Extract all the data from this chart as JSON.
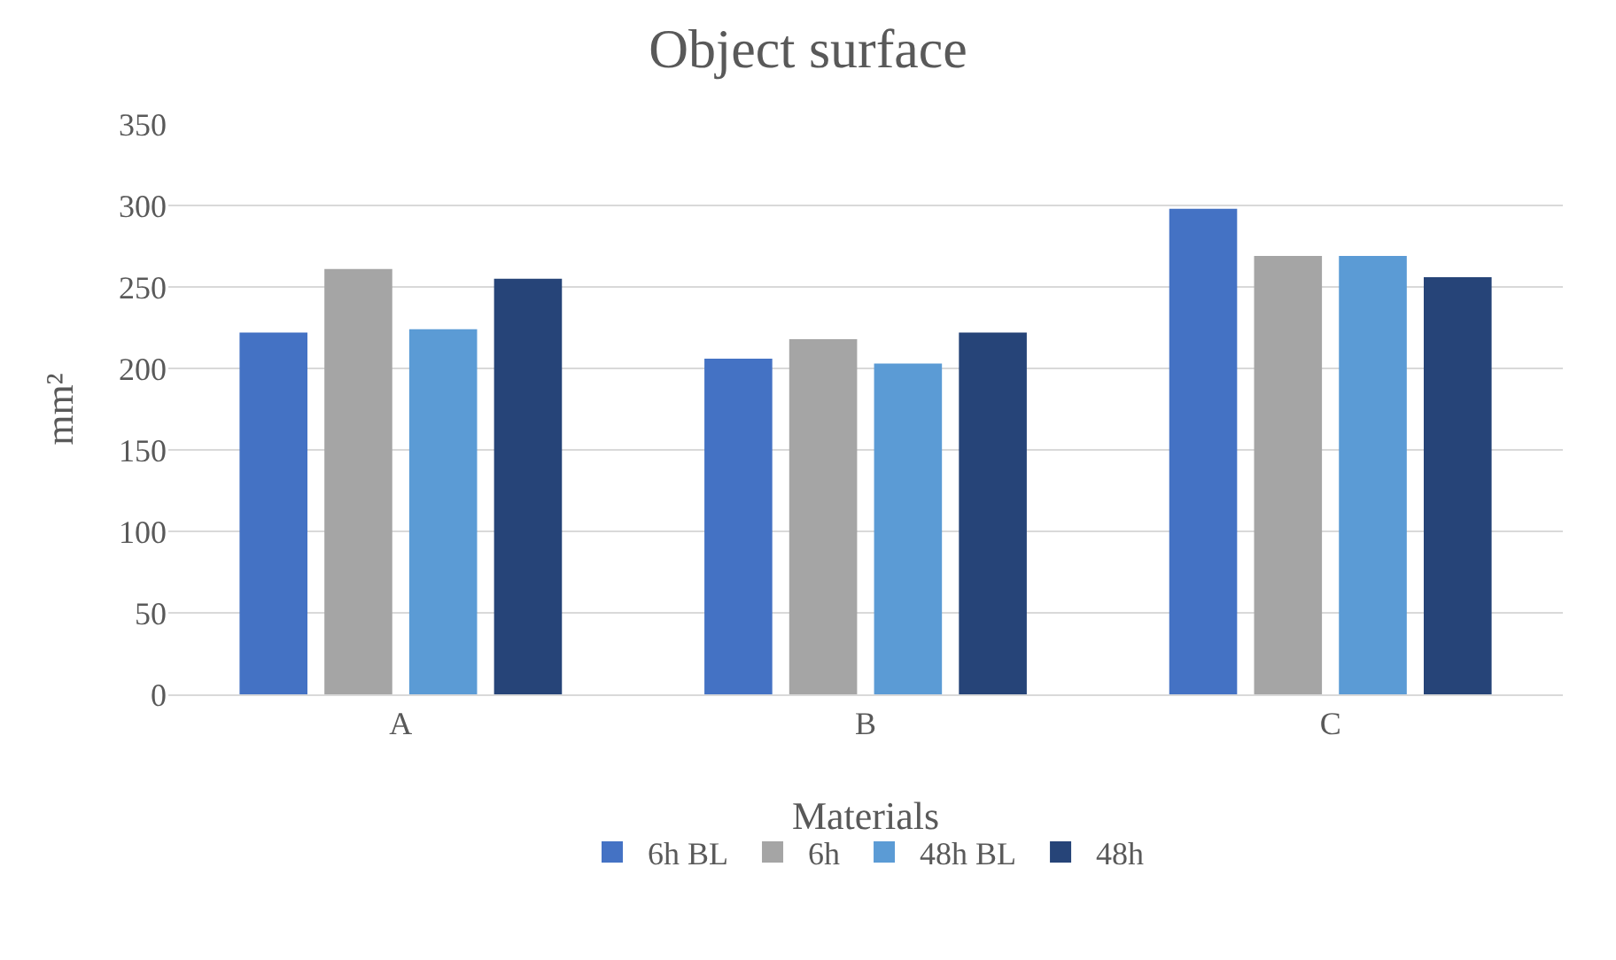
{
  "chart_data": {
    "type": "bar",
    "title": "Object surface",
    "xlabel": "Materials",
    "ylabel": "mm²",
    "categories": [
      "A",
      "B",
      "C"
    ],
    "series": [
      {
        "name": "6h BL",
        "color": "#4472c4",
        "values": [
          222,
          206,
          298
        ]
      },
      {
        "name": "6h",
        "color": "#a5a5a5",
        "values": [
          261,
          218,
          269
        ]
      },
      {
        "name": "48h BL",
        "color": "#5b9bd5",
        "values": [
          224,
          203,
          269
        ]
      },
      {
        "name": "48h",
        "color": "#264478",
        "values": [
          255,
          222,
          256
        ]
      }
    ],
    "ylim": [
      0,
      350
    ],
    "yticks": [
      0,
      50,
      100,
      150,
      200,
      250,
      300,
      350
    ],
    "grid": "y",
    "legend": "bottom"
  }
}
